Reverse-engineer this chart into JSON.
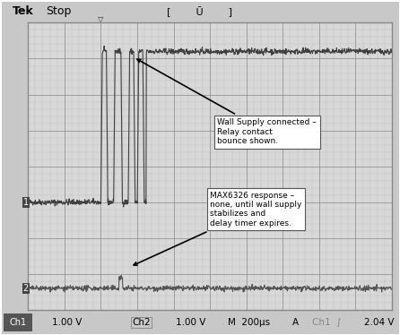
{
  "bg_color": "#d0d0d0",
  "screen_bg": "#e8e8e8",
  "grid_color": "#aaaaaa",
  "trace1_color": "#404040",
  "trace2_color": "#555555",
  "title_left": "Tek",
  "title_right": "Stop",
  "footer_text": "Ch1   1.00 V      Ch2   1.00 V      M  200μs    A   Ch1  ʃ    2.04 V",
  "annotation1": "Wall Supply connected –\nRelay contact\nbounce shown.",
  "annotation2": "MAX6326 response –\nnone, until wall supply\nstabilizes and\ndelay timer expires.",
  "num_hdiv": 10,
  "num_vdiv": 8,
  "ch1_div": 5,
  "ch2_div": 7.5
}
